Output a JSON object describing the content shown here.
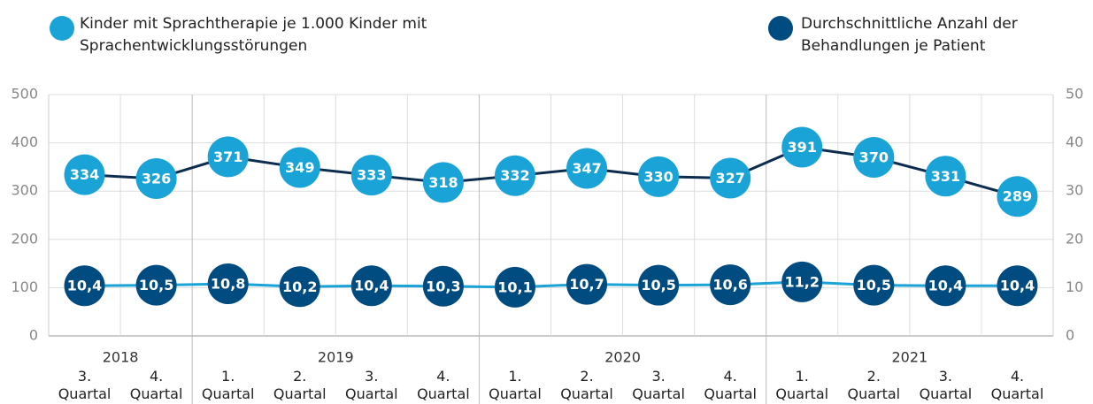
{
  "chart_data": {
    "type": "line",
    "categories": [
      "3. Quartal",
      "4. Quartal",
      "1. Quartal",
      "2. Quartal",
      "3. Quartal",
      "4. Quartal",
      "1. Quartal",
      "2. Quartal",
      "3. Quartal",
      "4. Quartal",
      "1. Quartal",
      "2. Quartal",
      "3. Quartal",
      "4. Quartal"
    ],
    "years": [
      "2018",
      "2018",
      "2019",
      "2019",
      "2019",
      "2019",
      "2020",
      "2020",
      "2020",
      "2020",
      "2021",
      "2021",
      "2021",
      "2021"
    ],
    "series": [
      {
        "name": "Kinder mit Sprachtherapie je 1.000 Kinder mit Sprachentwicklungsstörungen",
        "color": "#1aa3d6",
        "line_color": "#0d2d4f",
        "values": [
          334,
          326,
          371,
          349,
          333,
          318,
          332,
          347,
          330,
          327,
          391,
          370,
          331,
          289
        ]
      },
      {
        "name": "Durchschnittliche Anzahl der Behandlungen je Patient",
        "color": "#004b7f",
        "line_color": "#1aa3d6",
        "axis": "y2",
        "values": [
          10.4,
          10.5,
          10.8,
          10.2,
          10.4,
          10.3,
          10.1,
          10.7,
          10.5,
          10.6,
          11.2,
          10.5,
          10.4,
          10.4
        ],
        "value_labels": [
          "10,4",
          "10,5",
          "10,8",
          "10,2",
          "10,4",
          "10,3",
          "10,1",
          "10,7",
          "10,5",
          "10,6",
          "11,2",
          "10,5",
          "10,4",
          "10,4"
        ]
      }
    ],
    "ylim": [
      0,
      500
    ],
    "yticks": [
      0,
      100,
      200,
      300,
      400,
      500
    ],
    "y2lim": [
      0,
      50
    ],
    "y2ticks": [
      0,
      10,
      20,
      30,
      40,
      50
    ],
    "grid": true
  }
}
